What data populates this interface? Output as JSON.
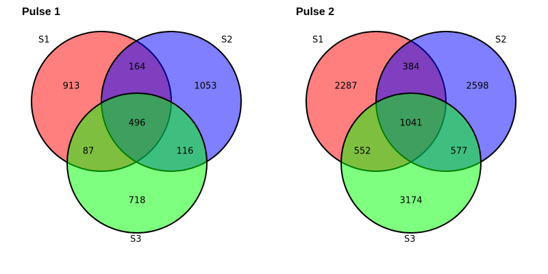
{
  "colors": {
    "s1": "#ff0000",
    "s2": "#0000ff",
    "s3": "#00ff00",
    "fill_opacity": 0.5,
    "stroke": "#000000"
  },
  "panels": [
    {
      "title": "Pulse 1",
      "labels": {
        "s1": "S1",
        "s2": "S2",
        "s3": "S3"
      },
      "counts": {
        "s1_only": "913",
        "s2_only": "1053",
        "s3_only": "718",
        "s1_s2": "164",
        "s1_s3": "87",
        "s2_s3": "116",
        "s1_s2_s3": "496"
      }
    },
    {
      "title": "Pulse 2",
      "labels": {
        "s1": "S1",
        "s2": "S2",
        "s3": "S3"
      },
      "counts": {
        "s1_only": "2287",
        "s2_only": "2598",
        "s3_only": "3174",
        "s1_s2": "384",
        "s1_s3": "552",
        "s2_s3": "577",
        "s1_s2_s3": "1041"
      }
    }
  ]
}
